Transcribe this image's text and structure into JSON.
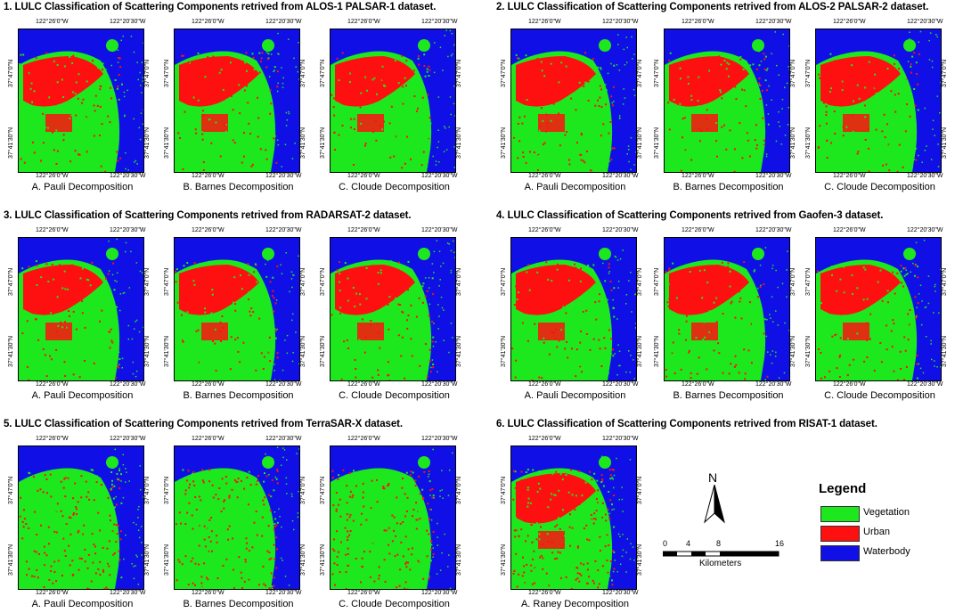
{
  "colors": {
    "vegetation": "#1de81d",
    "urban": "#ff1010",
    "waterbody": "#1010e6"
  },
  "coords": {
    "lon_left": "122°26'0\"W",
    "lon_right": "122°20'30\"W",
    "lat_top": "37°47'0\"N",
    "lat_bottom": "37°41'30\"N"
  },
  "sections": [
    {
      "title": "1. LULC Classification of Scattering Components retrived  from ALOS-1 PALSAR-1 dataset.",
      "captions": [
        "A. Pauli Decomposition",
        "B. Barnes Decomposition",
        "C. Cloude Decomposition"
      ]
    },
    {
      "title": "2. LULC Classification of Scattering Components retrived from ALOS-2 PALSAR-2 dataset.",
      "captions": [
        "A. Pauli Decomposition",
        "B. Barnes Decomposition",
        "C. Cloude Decomposition"
      ]
    },
    {
      "title": "3. LULC Classification of Scattering Components retrived from RADARSAT-2 dataset.",
      "captions": [
        "A. Pauli Decomposition",
        "B. Barnes Decomposition",
        "C. Cloude Decomposition"
      ]
    },
    {
      "title": "4. LULC Classification of Scattering Components retrived from Gaofen-3 dataset.",
      "captions": [
        "A. Pauli Decomposition",
        "B. Barnes Decomposition",
        "C. Cloude Decomposition"
      ]
    },
    {
      "title": "5. LULC Classification of Scattering Components retrived from TerraSAR-X dataset.",
      "captions": [
        "A. Pauli Decomposition",
        "B. Barnes Decomposition",
        "C. Cloude Decomposition"
      ]
    },
    {
      "title": "6. LULC Classification of Scattering Components retrived from RISAT-1 dataset.",
      "captions": [
        "A. Raney Decomposition"
      ]
    }
  ],
  "north_label": "N",
  "scale": {
    "ticks": [
      "0",
      "4",
      "8",
      "16"
    ],
    "unit": "Kilometers"
  },
  "legend": {
    "title": "Legend",
    "items": [
      {
        "label": "Vegetation",
        "color": "#1de81d"
      },
      {
        "label": "Urban",
        "color": "#ff1010"
      },
      {
        "label": "Waterbody",
        "color": "#1010e6"
      }
    ]
  }
}
